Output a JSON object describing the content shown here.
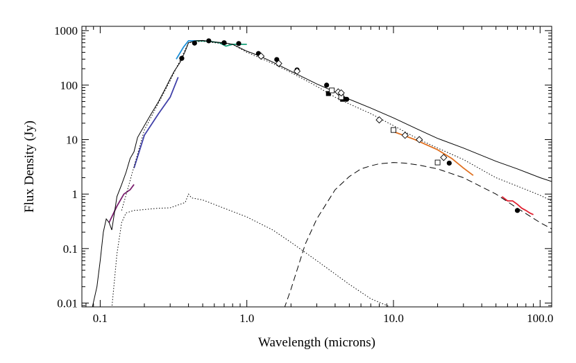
{
  "chart_data": {
    "type": "line",
    "title": "",
    "xlabel": "Wavelength (microns)",
    "ylabel": "Flux Density (Jy)",
    "x_scale": "log",
    "y_scale": "log",
    "xlim": [
      0.075,
      120
    ],
    "ylim": [
      0.0085,
      1200
    ],
    "x_ticks": [
      0.1,
      1.0,
      10.0,
      100.0
    ],
    "x_tick_labels": [
      "0.1",
      "1.0",
      "10.0",
      "100.0"
    ],
    "y_ticks": [
      0.01,
      0.1,
      1,
      10,
      100,
      1000
    ],
    "y_tick_labels": [
      "0.01",
      "0.1",
      "1",
      "10",
      "100",
      "1000"
    ],
    "grid": false,
    "legend": "none",
    "colors": {
      "uv_short": "#7a1f6e",
      "uv_long": "#4040a8",
      "optical_blue": "#1e90d8",
      "optical_green": "#12a078",
      "mid_ir": "#e07020",
      "far_ir": "#e02030",
      "model": "#000000"
    },
    "series": [
      {
        "style": "solid",
        "x": [
          0.088,
          0.095,
          0.1,
          0.105,
          0.11,
          0.115,
          0.12,
          0.13,
          0.14,
          0.15,
          0.16,
          0.17,
          0.18,
          0.2,
          0.22,
          0.25,
          0.28,
          0.3,
          0.32,
          0.35,
          0.38,
          0.4,
          0.45,
          0.5,
          0.6,
          0.7,
          0.8,
          1.0,
          1.2,
          1.5,
          2.0,
          3.0,
          4.0,
          5.0,
          7.0,
          10,
          15,
          20,
          30,
          50,
          70,
          100,
          120
        ],
        "y": [
          0.008,
          0.02,
          0.06,
          0.2,
          0.35,
          0.3,
          0.22,
          0.9,
          1.5,
          2.5,
          4.5,
          6,
          11,
          18,
          28,
          50,
          90,
          130,
          180,
          260,
          420,
          600,
          650,
          660,
          620,
          600,
          560,
          420,
          350,
          265,
          180,
          105,
          75,
          55,
          38,
          25,
          15,
          10.5,
          7,
          4,
          2.9,
          2,
          1.7
        ]
      },
      {
        "style": "dotted",
        "x": [
          0.12,
          0.13,
          0.14,
          0.15,
          0.17,
          0.2,
          0.25,
          0.3,
          0.35,
          0.38,
          0.4,
          0.42,
          0.5,
          0.7,
          1.0,
          1.5,
          2.0,
          3.0,
          5.0,
          7.0,
          10.0
        ],
        "y": [
          0.008,
          0.08,
          0.3,
          0.45,
          0.5,
          0.52,
          0.55,
          0.56,
          0.65,
          0.7,
          1.0,
          0.85,
          0.78,
          0.55,
          0.38,
          0.22,
          0.13,
          0.06,
          0.022,
          0.012,
          0.008
        ]
      },
      {
        "style": "dotted",
        "x": [
          0.14,
          0.2,
          0.3,
          0.4,
          0.5,
          0.6,
          0.8,
          1.0,
          1.5,
          2.0,
          3.0,
          4.0,
          5.0,
          7.0,
          10,
          15,
          20,
          30,
          50,
          70,
          100,
          120
        ],
        "y": [
          0.5,
          15,
          120,
          600,
          640,
          600,
          560,
          400,
          250,
          170,
          95,
          60,
          45,
          30,
          18,
          10,
          7,
          4.3,
          2,
          1.4,
          0.95,
          0.75
        ]
      },
      {
        "style": "dashed",
        "x": [
          1.8,
          2.0,
          2.5,
          3.0,
          4.0,
          5.0,
          6.0,
          7.0,
          8.0,
          10.0,
          12.0,
          15.0,
          20,
          30,
          50,
          70,
          100,
          120
        ],
        "y": [
          0.008,
          0.018,
          0.12,
          0.35,
          1.2,
          2.1,
          2.9,
          3.3,
          3.6,
          3.8,
          3.7,
          3.4,
          2.9,
          2.0,
          1.0,
          0.55,
          0.3,
          0.23
        ]
      }
    ],
    "spectra": [
      {
        "color_key": "uv_short",
        "x": [
          0.115,
          0.13,
          0.145,
          0.16,
          0.17
        ],
        "y": [
          0.3,
          0.6,
          1.0,
          1.2,
          1.5
        ]
      },
      {
        "color_key": "uv_long",
        "x": [
          0.17,
          0.2,
          0.25,
          0.3,
          0.34
        ],
        "y": [
          3,
          12,
          30,
          60,
          140
        ]
      },
      {
        "color_key": "optical_blue",
        "x": [
          0.33,
          0.37,
          0.4,
          0.45
        ],
        "y": [
          300,
          500,
          650,
          650
        ]
      },
      {
        "color_key": "optical_green",
        "x": [
          0.45,
          0.55,
          0.65,
          0.72,
          0.8,
          0.9,
          1.0
        ],
        "y": [
          650,
          640,
          600,
          520,
          560,
          560,
          560
        ]
      },
      {
        "color_key": "mid_ir",
        "x": [
          10,
          14,
          20,
          25,
          30,
          35
        ],
        "y": [
          14,
          10,
          6.5,
          4.5,
          3,
          2.2
        ]
      },
      {
        "color_key": "far_ir",
        "x": [
          55,
          60,
          65,
          70,
          75,
          80,
          85,
          90
        ],
        "y": [
          0.9,
          0.75,
          0.75,
          0.65,
          0.55,
          0.5,
          0.45,
          0.42
        ]
      }
    ],
    "photometry_filled_circles": {
      "x": [
        0.36,
        0.44,
        0.55,
        0.7,
        0.88,
        1.2,
        1.6,
        2.2,
        3.5,
        4.8,
        24,
        70
      ],
      "y": [
        310,
        590,
        650,
        600,
        580,
        380,
        295,
        190,
        100,
        55,
        3.7,
        0.5
      ]
    },
    "photometry_filled_squares": {
      "x": [
        3.6,
        4.5
      ],
      "y": [
        70,
        55
      ]
    },
    "photometry_open_squares": {
      "x": [
        3.8,
        4.4,
        10,
        20
      ],
      "y": [
        80,
        60,
        15,
        3.8
      ]
    },
    "photometry_open_diamonds": {
      "x": [
        1.25,
        1.65,
        2.2,
        4.2,
        4.4,
        8,
        12,
        15,
        22
      ],
      "y": [
        340,
        250,
        180,
        75,
        72,
        23,
        12,
        10,
        4.7
      ]
    }
  }
}
